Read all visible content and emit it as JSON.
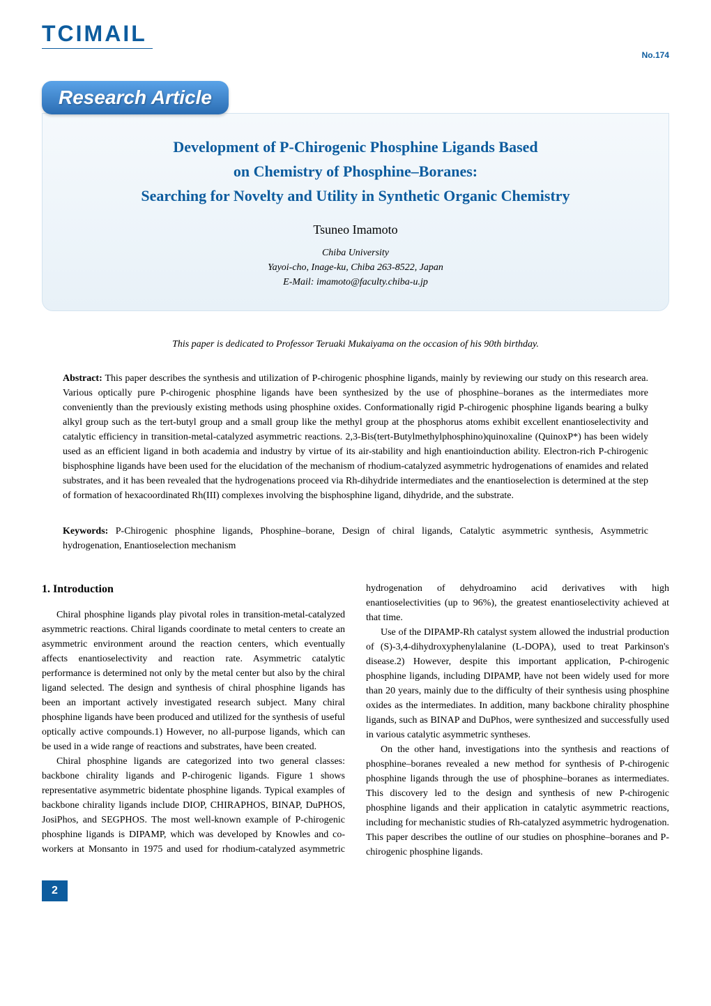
{
  "header": {
    "logo_text": "TCIMAIL",
    "issue_number": "No.174"
  },
  "badge": {
    "label": "Research Article"
  },
  "article": {
    "title_line1": "Development of P-Chirogenic Phosphine Ligands Based",
    "title_line2": "on Chemistry of Phosphine–Boranes:",
    "title_line3": "Searching for Novelty and Utility in Synthetic Organic Chemistry",
    "author": "Tsuneo Imamoto",
    "affiliation_line1": "Chiba University",
    "affiliation_line2": "Yayoi-cho, Inage-ku, Chiba 263-8522, Japan",
    "affiliation_line3": "E-Mail: imamoto@faculty.chiba-u.jp"
  },
  "dedication": "This paper is dedicated to Professor Teruaki Mukaiyama on the occasion of his 90th birthday.",
  "abstract": {
    "label": "Abstract:",
    "text": " This paper describes the synthesis and utilization of P-chirogenic phosphine ligands, mainly by reviewing our study on this research area. Various optically pure P-chirogenic phosphine ligands have been synthesized by the use of phosphine–boranes as the intermediates more conveniently than the previously existing methods using phosphine oxides. Conformationally rigid P-chirogenic phosphine ligands bearing a bulky alkyl group such as the tert-butyl group and a small group like the methyl group at the phosphorus atoms exhibit excellent enantioselectivity and catalytic efficiency in transition-metal-catalyzed asymmetric reactions. 2,3-Bis(tert-Butylmethylphosphino)quinoxaline (QuinoxP*) has been widely used as an efficient ligand in both academia and industry by virtue of its air-stability and high enantioinduction ability. Electron-rich P-chirogenic bisphosphine ligands have been used for the elucidation of the mechanism of rhodium-catalyzed asymmetric hydrogenations of enamides and related substrates, and it has been revealed that the hydrogenations proceed via Rh-dihydride intermediates and the enantioselection is determined at the step of formation of hexacoordinated Rh(III) complexes involving the bisphosphine ligand, dihydride, and the substrate."
  },
  "keywords": {
    "label": "Keywords:",
    "text": " P-Chirogenic phosphine ligands, Phosphine–borane, Design of chiral ligands, Catalytic asymmetric synthesis, Asymmetric hydrogenation, Enantioselection mechanism"
  },
  "section": {
    "heading": "1. Introduction",
    "para1": "Chiral phosphine ligands play pivotal roles in transition-metal-catalyzed asymmetric reactions. Chiral ligands coordinate to metal centers to create an asymmetric environment around the reaction centers, which eventually affects enantioselectivity and reaction rate. Asymmetric catalytic performance is determined not only by the metal center but also by the chiral ligand selected. The design and synthesis of chiral phosphine ligands has been an important actively investigated research subject. Many chiral phosphine ligands have been produced and utilized for the synthesis of useful optically active compounds.1) However, no all-purpose ligands, which can be used in a wide range of reactions and substrates, have been created.",
    "para2": "Chiral phosphine ligands are categorized into two general classes: backbone chirality ligands and P-chirogenic ligands. Figure 1 shows representative asymmetric bidentate phosphine ligands. Typical examples of backbone chirality ligands include DIOP, CHIRAPHOS, BINAP, DuPHOS, JosiPhos, and SEGPHOS. The most well-known example of P-chirogenic phosphine ligands is DIPAMP, which was developed by Knowles and co-workers at Monsanto in 1975 and used for rhodium-catalyzed asymmetric hydrogenation of dehydroamino acid derivatives with high enantioselectivities (up to 96%), the greatest enantioselectivity achieved at that time.",
    "para3": "Use of the DIPAMP-Rh catalyst system allowed the industrial production of (S)-3,4-dihydroxyphenylalanine (L-DOPA), used to treat Parkinson's disease.2) However, despite this important application, P-chirogenic phosphine ligands, including DIPAMP, have not been widely used for more than 20 years, mainly due to the difficulty of their synthesis using phosphine oxides as the intermediates. In addition, many backbone chirality phosphine ligands, such as BINAP and DuPhos, were synthesized and successfully used in various catalytic asymmetric syntheses.",
    "para4": "On the other hand, investigations into the synthesis and reactions of phosphine–boranes revealed a new method for synthesis of P-chirogenic phosphine ligands through the use of phosphine–boranes as intermediates. This discovery led to the design and synthesis of new P-chirogenic phosphine ligands and their application in catalytic asymmetric reactions, including for mechanistic studies of Rh-catalyzed asymmetric hydrogenation. This paper describes the outline of our studies on phosphine–boranes and P-chirogenic phosphine ligands."
  },
  "page_number": "2",
  "colors": {
    "brand_blue": "#0d5c9e",
    "gradient_top": "#5aa3e8",
    "gradient_bottom": "#2b6db3",
    "title_bg_top": "#f5f9fc",
    "title_bg_bottom": "#e8f1f8",
    "border": "#d4e4f0",
    "text": "#000000",
    "white": "#ffffff"
  },
  "typography": {
    "body_font": "Times New Roman",
    "ui_font": "Arial",
    "title_size_pt": 16,
    "body_size_pt": 10,
    "author_size_pt": 13,
    "badge_size_pt": 20
  }
}
